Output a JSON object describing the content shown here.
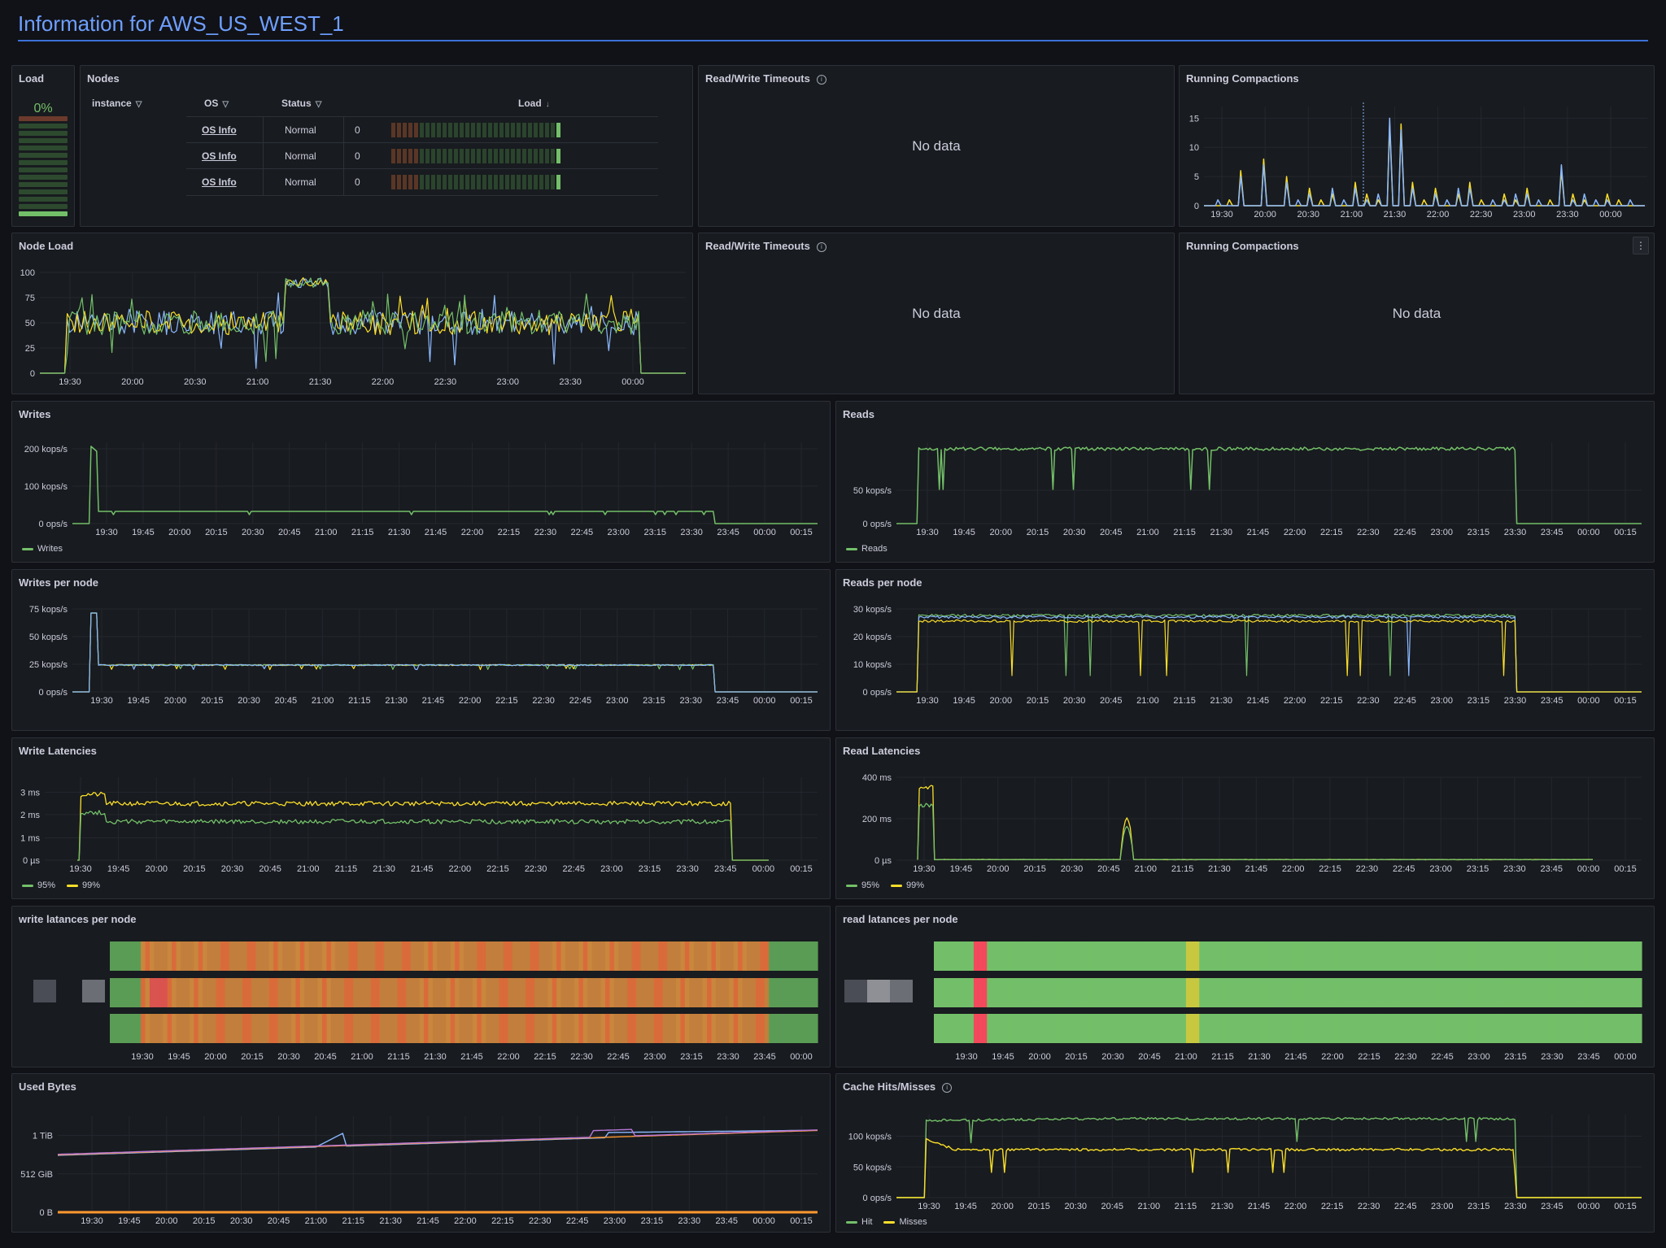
{
  "header": {
    "title": "Information for AWS_US_WEST_1"
  },
  "colors": {
    "green": "#73bf69",
    "yellow": "#fade2a",
    "blue": "#8ab8ff",
    "orange": "#ff9830",
    "purple": "#b877d9",
    "red": "#f2495c"
  },
  "time_ticks_short": [
    "19:30",
    "20:00",
    "20:30",
    "21:00",
    "21:30",
    "22:00",
    "22:30",
    "23:00",
    "23:30",
    "00:00"
  ],
  "time_ticks_long": [
    "19:30",
    "19:45",
    "20:00",
    "20:15",
    "20:30",
    "20:45",
    "21:00",
    "21:15",
    "21:30",
    "21:45",
    "22:00",
    "22:15",
    "22:30",
    "22:45",
    "23:00",
    "23:15",
    "23:30",
    "23:45",
    "00:00",
    "00:15"
  ],
  "load": {
    "title": "Load",
    "value": "0%"
  },
  "nodes": {
    "title": "Nodes",
    "headers": {
      "instance": "instance",
      "os": "OS",
      "status": "Status",
      "load": "Load"
    },
    "rows": [
      {
        "os": "OS Info",
        "status": "Normal",
        "load": "0"
      },
      {
        "os": "OS Info",
        "status": "Normal",
        "load": "0"
      },
      {
        "os": "OS Info",
        "status": "Normal",
        "load": "0"
      }
    ]
  },
  "rw_timeouts_1": {
    "title": "Read/Write Timeouts",
    "message": "No data"
  },
  "rw_timeouts_2": {
    "title": "Read/Write Timeouts",
    "message": "No data"
  },
  "running_compactions_1": {
    "title": "Running Compactions"
  },
  "running_compactions_2": {
    "title": "Running Compactions",
    "message": "No data",
    "menu_icon": "⋮"
  },
  "node_load": {
    "title": "Node Load"
  },
  "writes": {
    "title": "Writes",
    "legend": "Writes"
  },
  "reads": {
    "title": "Reads",
    "legend": "Reads"
  },
  "writes_per_node": {
    "title": "Writes per node"
  },
  "reads_per_node": {
    "title": "Reads per node"
  },
  "write_latencies": {
    "title": "Write Latencies",
    "legend": [
      "95%",
      "99%"
    ]
  },
  "read_latencies": {
    "title": "Read Latencies",
    "legend": [
      "95%",
      "99%"
    ]
  },
  "write_lat_node": {
    "title": "write latances per node"
  },
  "read_lat_node": {
    "title": "read latances per node"
  },
  "used_bytes": {
    "title": "Used Bytes"
  },
  "cache": {
    "title": "Cache Hits/Misses",
    "legend": [
      "Hit",
      "Misses"
    ]
  },
  "chart_data": [
    {
      "type": "line",
      "title": "Running Compactions",
      "yticks": [
        "0",
        "5",
        "10",
        "15"
      ],
      "ylim": [
        0,
        17
      ],
      "series": [
        {
          "values": [
            0,
            0,
            1,
            6,
            0,
            8,
            0,
            5,
            0,
            3,
            1,
            2,
            0,
            4,
            2,
            1,
            14,
            14,
            4,
            1,
            3,
            0,
            2,
            4,
            1,
            0,
            2,
            1,
            3,
            0,
            1,
            6,
            2,
            1,
            0,
            2,
            1,
            0,
            0
          ]
        },
        {
          "values": [
            0,
            1,
            0,
            5,
            0,
            7,
            0,
            4,
            1,
            2,
            0,
            3,
            1,
            3,
            1,
            2,
            15,
            13,
            3,
            0,
            2,
            1,
            3,
            3,
            0,
            1,
            1,
            2,
            2,
            1,
            0,
            7,
            1,
            2,
            1,
            1,
            0,
            1,
            0
          ]
        }
      ]
    },
    {
      "type": "line",
      "title": "Node Load",
      "yticks": [
        "0",
        "25",
        "50",
        "75",
        "100"
      ],
      "ylim": [
        0,
        100
      ]
    },
    {
      "type": "line",
      "title": "Writes",
      "yticks": [
        "0 ops/s",
        "100 kops/s",
        "200 kops/s"
      ],
      "series": [
        {
          "name": "Writes"
        }
      ]
    },
    {
      "type": "line",
      "title": "Reads",
      "yticks": [
        "0 ops/s",
        "50 kops/s"
      ],
      "series": [
        {
          "name": "Reads"
        }
      ]
    },
    {
      "type": "line",
      "title": "Writes per node",
      "yticks": [
        "0 ops/s",
        "25 kops/s",
        "50 kops/s",
        "75 kops/s"
      ]
    },
    {
      "type": "line",
      "title": "Reads per node",
      "yticks": [
        "0 ops/s",
        "10 kops/s",
        "20 kops/s",
        "30 kops/s"
      ]
    },
    {
      "type": "line",
      "title": "Write Latencies",
      "yticks": [
        "0 µs",
        "1 ms",
        "2 ms",
        "3 ms"
      ],
      "series": [
        {
          "name": "95%"
        },
        {
          "name": "99%"
        }
      ]
    },
    {
      "type": "line",
      "title": "Read Latencies",
      "yticks": [
        "0 µs",
        "200 ms",
        "400 ms"
      ],
      "series": [
        {
          "name": "95%"
        },
        {
          "name": "99%"
        }
      ]
    },
    {
      "type": "heatmap",
      "title": "write latances per node"
    },
    {
      "type": "heatmap",
      "title": "read latances per node"
    },
    {
      "type": "line",
      "title": "Used Bytes",
      "yticks": [
        "0 B",
        "512 GiB",
        "1 TiB"
      ]
    },
    {
      "type": "line",
      "title": "Cache Hits/Misses",
      "yticks": [
        "0 ops/s",
        "50 kops/s",
        "100 kops/s"
      ],
      "series": [
        {
          "name": "Hit"
        },
        {
          "name": "Misses"
        }
      ]
    }
  ]
}
